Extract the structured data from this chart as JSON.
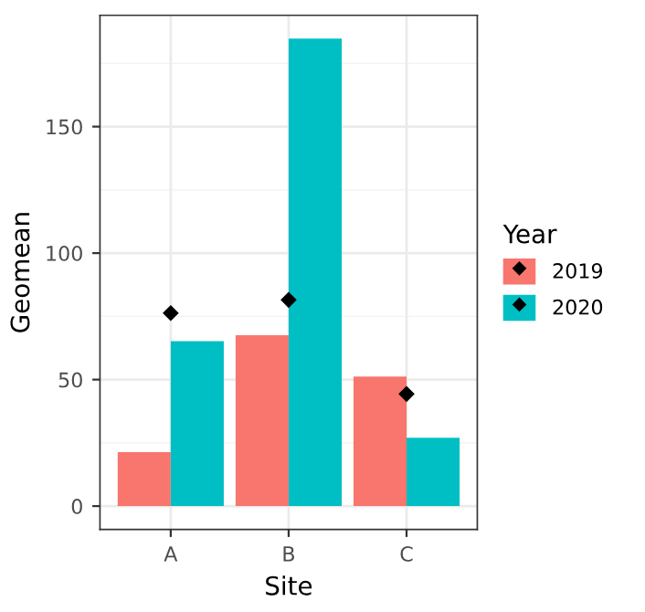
{
  "chart_data": {
    "type": "bar",
    "xlabel": "Site",
    "ylabel": "Geomean",
    "legend_title": "Year",
    "categories": [
      "A",
      "B",
      "C"
    ],
    "series": [
      {
        "name": "2019",
        "color": "#f8766d",
        "values": [
          21.3,
          67.5,
          51.2
        ]
      },
      {
        "name": "2020",
        "color": "#00bfc4",
        "values": [
          65.2,
          184.8,
          27.0
        ]
      },
      {
        "type": "scatter",
        "color": "#000000",
        "marker": "diamond",
        "x": [
          "A",
          "B",
          "C"
        ],
        "values": [
          76.3,
          81.5,
          44.3
        ]
      }
    ],
    "ylim": [
      -9.2,
      194
    ],
    "yticks": [
      0,
      50,
      100,
      150
    ],
    "grid": true,
    "legend": "right"
  }
}
